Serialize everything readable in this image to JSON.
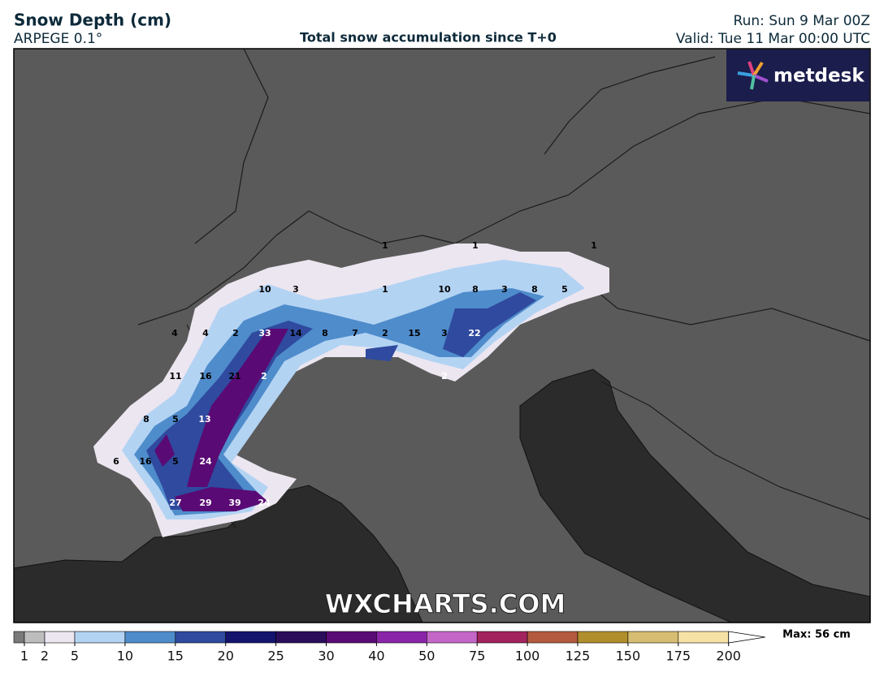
{
  "header": {
    "title": "Snow Depth (cm)",
    "model": "ARPEGE 0.1°",
    "subtitle": "Total snow accumulation since T+0",
    "run": "Run: Sun 9 Mar 00Z",
    "valid": "Valid: Tue 11 Mar 00:00 UTC"
  },
  "logo": "metdesk",
  "watermark": "WXCHARTS.COM",
  "points": [
    1,
    1,
    1,
    10,
    3,
    1,
    10,
    8,
    3,
    8,
    5,
    4,
    4,
    2,
    33,
    14,
    8,
    7,
    2,
    15,
    3,
    22,
    2,
    11,
    16,
    21,
    2,
    8,
    5,
    13,
    6,
    16,
    5,
    24,
    27,
    29,
    39,
    24
  ],
  "legend": {
    "ticks": [
      1,
      2,
      5,
      10,
      15,
      20,
      25,
      30,
      40,
      50,
      75,
      100,
      125,
      150,
      175,
      200
    ],
    "under_color": "#7a7a7a",
    "colors": [
      "#bdbdbd",
      "#ece6f0",
      "#b3d3f3",
      "#4f8ccb",
      "#2f4a9e",
      "#14136e",
      "#2b0d5c",
      "#5a0a74",
      "#8a24a8",
      "#c466c8",
      "#a3235e",
      "#b45a3e",
      "#b08e2c",
      "#d7bd72",
      "#f7e2a6"
    ],
    "max_label": "Max: 56 cm"
  }
}
